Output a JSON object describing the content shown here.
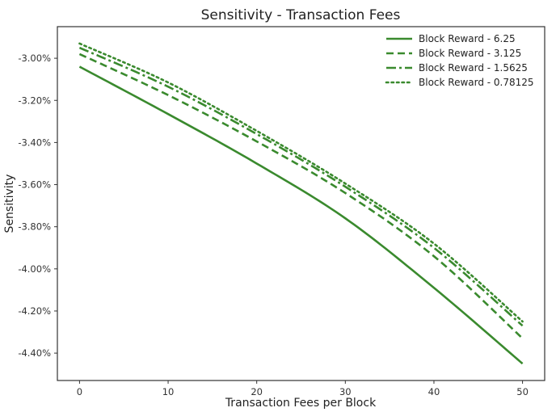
{
  "chart_data": {
    "type": "line",
    "title": "Sensitivity - Transaction Fees",
    "xlabel": "Transaction Fees per Block",
    "ylabel": "Sensitivity",
    "xlim": [
      -2.5,
      52.5
    ],
    "ylim": [
      -4.53,
      -2.85
    ],
    "x_ticks": [
      0,
      10,
      20,
      30,
      40,
      50
    ],
    "y_ticks": [
      -3.0,
      -3.2,
      -3.4,
      -3.6,
      -3.8,
      -4.0,
      -4.2,
      -4.4
    ],
    "y_tick_labels": [
      "-3.00%",
      "-3.20%",
      "-3.40%",
      "-3.60%",
      "-3.80%",
      "-4.00%",
      "-4.20%",
      "-4.40%"
    ],
    "grid": false,
    "legend_position": "top-right",
    "color": "#3a8a2e",
    "x": [
      0,
      10,
      20,
      30,
      40,
      50
    ],
    "series": [
      {
        "name": "Block Reward - 6.25",
        "style": "solid",
        "values": [
          -3.04,
          -3.265,
          -3.5,
          -3.76,
          -4.09,
          -4.45
        ]
      },
      {
        "name": "Block Reward - 3.125",
        "style": "dashed",
        "values": [
          -2.98,
          -3.175,
          -3.395,
          -3.64,
          -3.94,
          -4.33
        ]
      },
      {
        "name": "Block Reward - 1.5625",
        "style": "dashdot",
        "values": [
          -2.95,
          -3.135,
          -3.36,
          -3.61,
          -3.9,
          -4.27
        ]
      },
      {
        "name": "Block Reward - 0.78125",
        "style": "dotted",
        "values": [
          -2.93,
          -3.115,
          -3.345,
          -3.595,
          -3.88,
          -4.25
        ]
      }
    ]
  }
}
